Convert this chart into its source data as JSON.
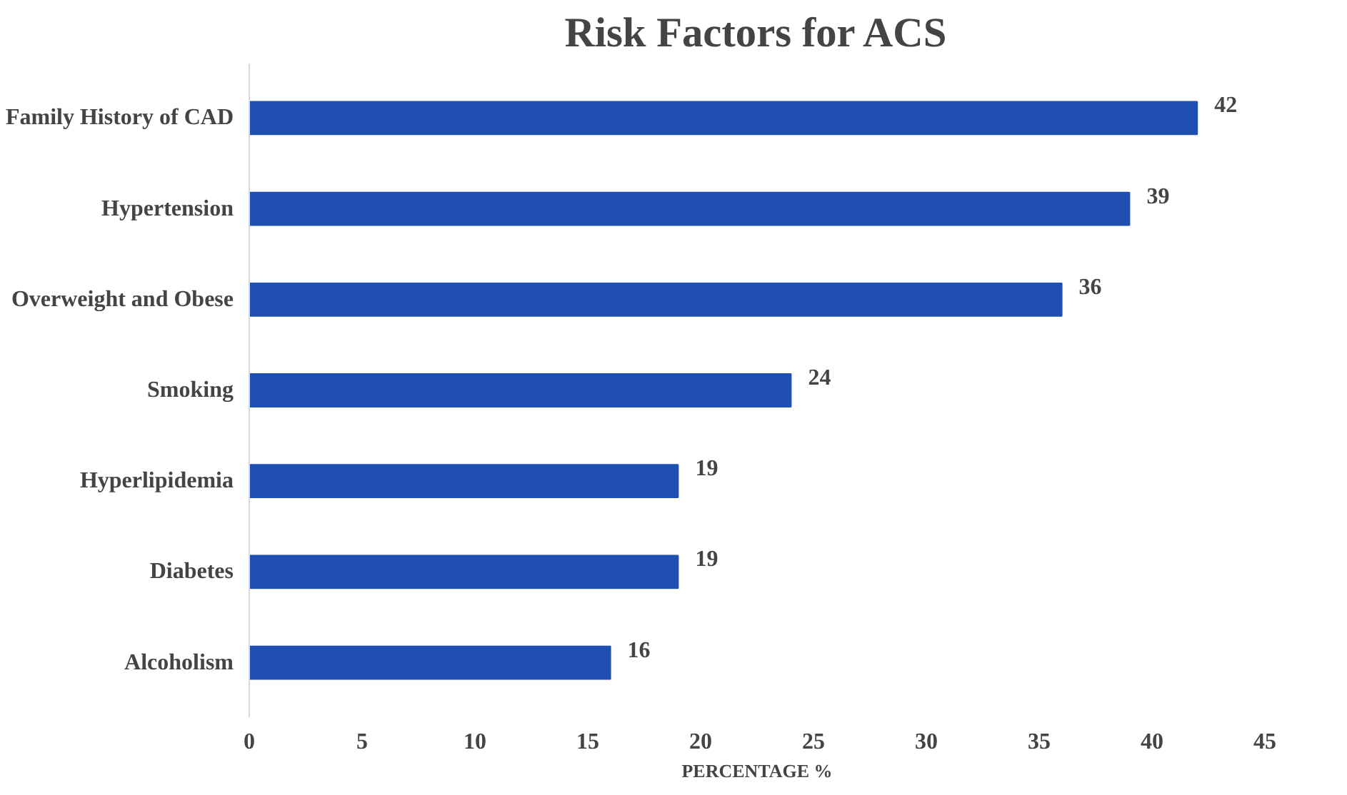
{
  "chart_data": {
    "type": "bar",
    "orientation": "horizontal",
    "title": "Risk Factors for ACS",
    "xlabel": "PERCENTAGE %",
    "categories": [
      "Family History of CAD",
      "Hypertension",
      "Overweight and Obese",
      "Smoking",
      "Hyperlipidemia",
      "Diabetes",
      "Alcoholism"
    ],
    "values": [
      42,
      39,
      36,
      24,
      19,
      19,
      16
    ],
    "color": "#1f4fb0",
    "data_labels": true,
    "xlim": [
      0,
      45
    ],
    "xticks": [
      0,
      5,
      10,
      15,
      20,
      25,
      30,
      35,
      40,
      45
    ]
  }
}
